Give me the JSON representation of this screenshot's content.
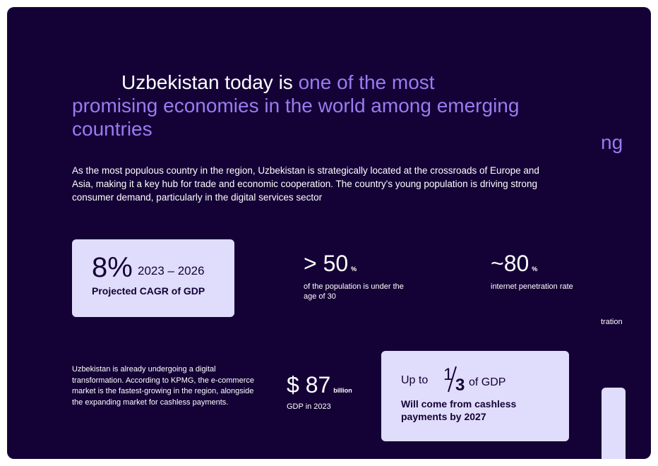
{
  "headline": {
    "lead": "Uzbekistan today is",
    "highlight_lines": [
      "one of the most",
      "promising economies in the world among emerging",
      "countries"
    ]
  },
  "intro": "As the most populous country in the region, Uzbekistan is strategically located at the crossroads of Europe and Asia, making it a key hub for trade and economic cooperation. The country's young population is driving strong consumer demand, particularly in the digital services sector",
  "cagr": {
    "value": "8%",
    "range": "2023 – 2026",
    "caption": "Projected CAGR of GDP"
  },
  "youth": {
    "value": "> 50",
    "unit": "%",
    "caption": "of the population is under the age of 30"
  },
  "internet": {
    "value": "~80",
    "unit": "%",
    "caption": "internet penetration rate"
  },
  "note": "Uzbekistan is already undergoing a digital transformation. According to KPMG, the e-commerce market is the fastest-growing in the region, alongside the expanding market for cashless payments.",
  "gdp": {
    "value": "$ 87",
    "unit": "billion",
    "caption": "GDP in 2023"
  },
  "cashless": {
    "prefix": "Up to",
    "numerator": "1",
    "denominator": "3",
    "suffix": "of GDP",
    "caption": "Will come from cashless payments by 2027"
  },
  "next_slide": {
    "headline_fragment": "ng",
    "caption_fragment": "tration"
  }
}
